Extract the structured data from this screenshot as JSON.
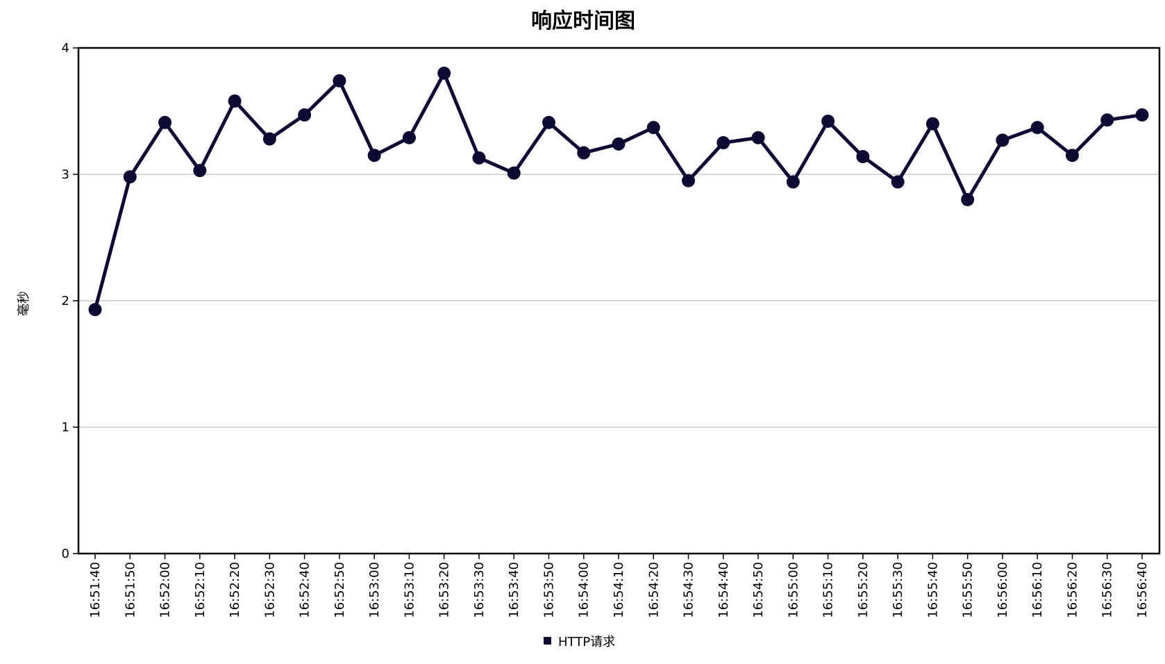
{
  "chart_data": {
    "type": "line",
    "title": "响应时间图",
    "xlabel": "",
    "ylabel": "毫秒",
    "ylim": [
      0,
      4
    ],
    "yticks": [
      0,
      1,
      2,
      3,
      4
    ],
    "grid": "horizontal",
    "legend_position": "bottom-center",
    "categories": [
      "16:51:40",
      "16:51:50",
      "16:52:00",
      "16:52:10",
      "16:52:20",
      "16:52:30",
      "16:52:40",
      "16:52:50",
      "16:53:00",
      "16:53:10",
      "16:53:20",
      "16:53:30",
      "16:53:40",
      "16:53:50",
      "16:54:00",
      "16:54:10",
      "16:54:20",
      "16:54:30",
      "16:54:40",
      "16:54:50",
      "16:55:00",
      "16:55:10",
      "16:55:20",
      "16:55:30",
      "16:55:40",
      "16:55:50",
      "16:56:00",
      "16:56:10",
      "16:56:20",
      "16:56:30",
      "16:56:40"
    ],
    "series": [
      {
        "name": "HTTP请求",
        "color": "#0d0a33",
        "values": [
          1.93,
          2.98,
          3.41,
          3.03,
          3.58,
          3.28,
          3.47,
          3.74,
          3.15,
          3.29,
          3.8,
          3.13,
          3.01,
          3.41,
          3.17,
          3.24,
          3.37,
          2.95,
          3.25,
          3.29,
          2.94,
          3.42,
          3.14,
          2.94,
          3.4,
          2.8,
          3.27,
          3.37,
          3.15,
          3.43,
          3.47
        ]
      }
    ]
  }
}
